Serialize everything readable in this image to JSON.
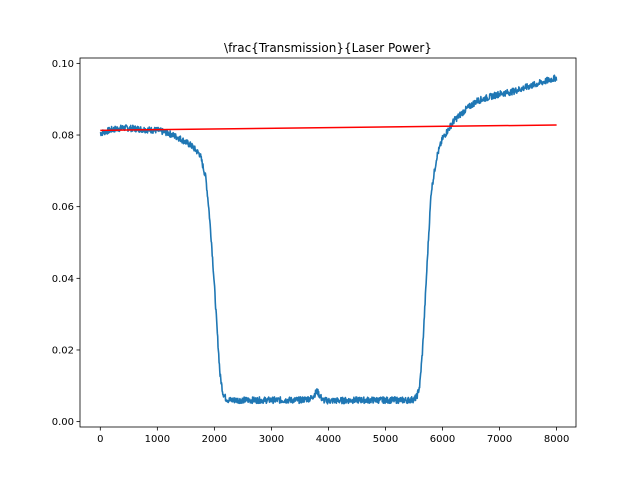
{
  "chart_data": {
    "type": "line",
    "title": "\\frac{Transmission}{Laser Power}",
    "xlabel": "",
    "ylabel": "",
    "xlim": [
      -356,
      8340
    ],
    "ylim": [
      -0.0015,
      0.1015
    ],
    "xticks": [
      0,
      1000,
      2000,
      3000,
      4000,
      5000,
      6000,
      7000,
      8000
    ],
    "yticks": [
      0.0,
      0.02,
      0.04,
      0.06,
      0.08,
      0.1
    ],
    "xtick_labels": [
      "0",
      "1000",
      "2000",
      "3000",
      "4000",
      "5000",
      "6000",
      "7000",
      "8000"
    ],
    "ytick_labels": [
      "0.00",
      "0.02",
      "0.04",
      "0.06",
      "0.08",
      "0.10"
    ],
    "grid": false,
    "series": [
      {
        "color": "#1f77b4",
        "noise": 0.0009,
        "x": [
          0,
          200,
          400,
          600,
          800,
          1000,
          1200,
          1400,
          1600,
          1750,
          1850,
          1900,
          1950,
          2000,
          2050,
          2100,
          2150,
          2200,
          2250,
          2300,
          2500,
          3000,
          3500,
          3700,
          3800,
          3900,
          4000,
          4500,
          5000,
          5400,
          5500,
          5550,
          5600,
          5650,
          5700,
          5750,
          5800,
          5900,
          6000,
          6200,
          6400,
          6600,
          6800,
          7000,
          7200,
          7400,
          7600,
          7800,
          8000
        ],
        "y": [
          0.0805,
          0.0815,
          0.082,
          0.0818,
          0.0815,
          0.0813,
          0.0805,
          0.079,
          0.077,
          0.0745,
          0.068,
          0.06,
          0.05,
          0.038,
          0.025,
          0.013,
          0.008,
          0.0065,
          0.006,
          0.006,
          0.006,
          0.006,
          0.006,
          0.0065,
          0.0085,
          0.006,
          0.0058,
          0.006,
          0.006,
          0.006,
          0.0062,
          0.007,
          0.01,
          0.02,
          0.035,
          0.05,
          0.064,
          0.074,
          0.079,
          0.084,
          0.087,
          0.0895,
          0.0905,
          0.0915,
          0.092,
          0.093,
          0.094,
          0.095,
          0.096
        ]
      },
      {
        "color": "#ff0000",
        "noise": 0,
        "x": [
          0,
          8000
        ],
        "y": [
          0.0813,
          0.0828
        ]
      }
    ]
  }
}
